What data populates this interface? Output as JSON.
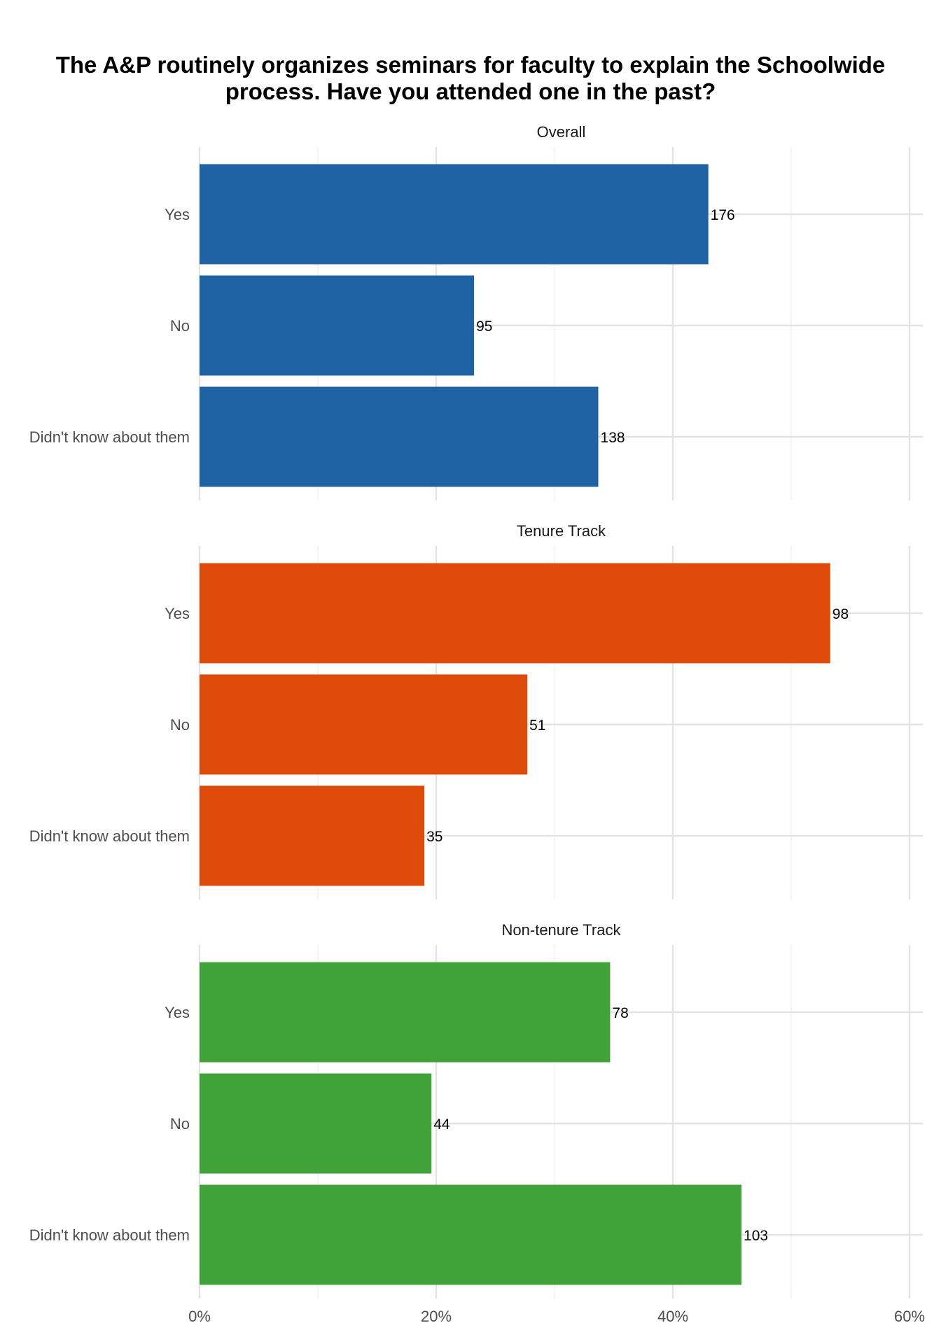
{
  "chart_data": {
    "type": "bar",
    "orientation": "horizontal",
    "title": "The A&P routinely organizes seminars for faculty to explain the Schoolwide process. Have you attended one in the past?",
    "categories": [
      "Yes",
      "No",
      "Didn't know about them"
    ],
    "x_tick_labels": [
      "0%",
      "20%",
      "40%",
      "60%"
    ],
    "xlim": [
      0,
      0.6
    ],
    "grid": true,
    "legend": "none",
    "facets": [
      {
        "name": "Overall",
        "color": "#1f63a5",
        "counts": [
          176,
          95,
          138
        ],
        "proportions": [
          0.43,
          0.232,
          0.337
        ]
      },
      {
        "name": "Tenure Track",
        "color": "#de4a09",
        "counts": [
          98,
          51,
          35
        ],
        "proportions": [
          0.533,
          0.277,
          0.19
        ]
      },
      {
        "name": "Non-tenure Track",
        "color": "#41a23a",
        "counts": [
          78,
          44,
          103
        ],
        "proportions": [
          0.347,
          0.196,
          0.458
        ]
      }
    ]
  }
}
